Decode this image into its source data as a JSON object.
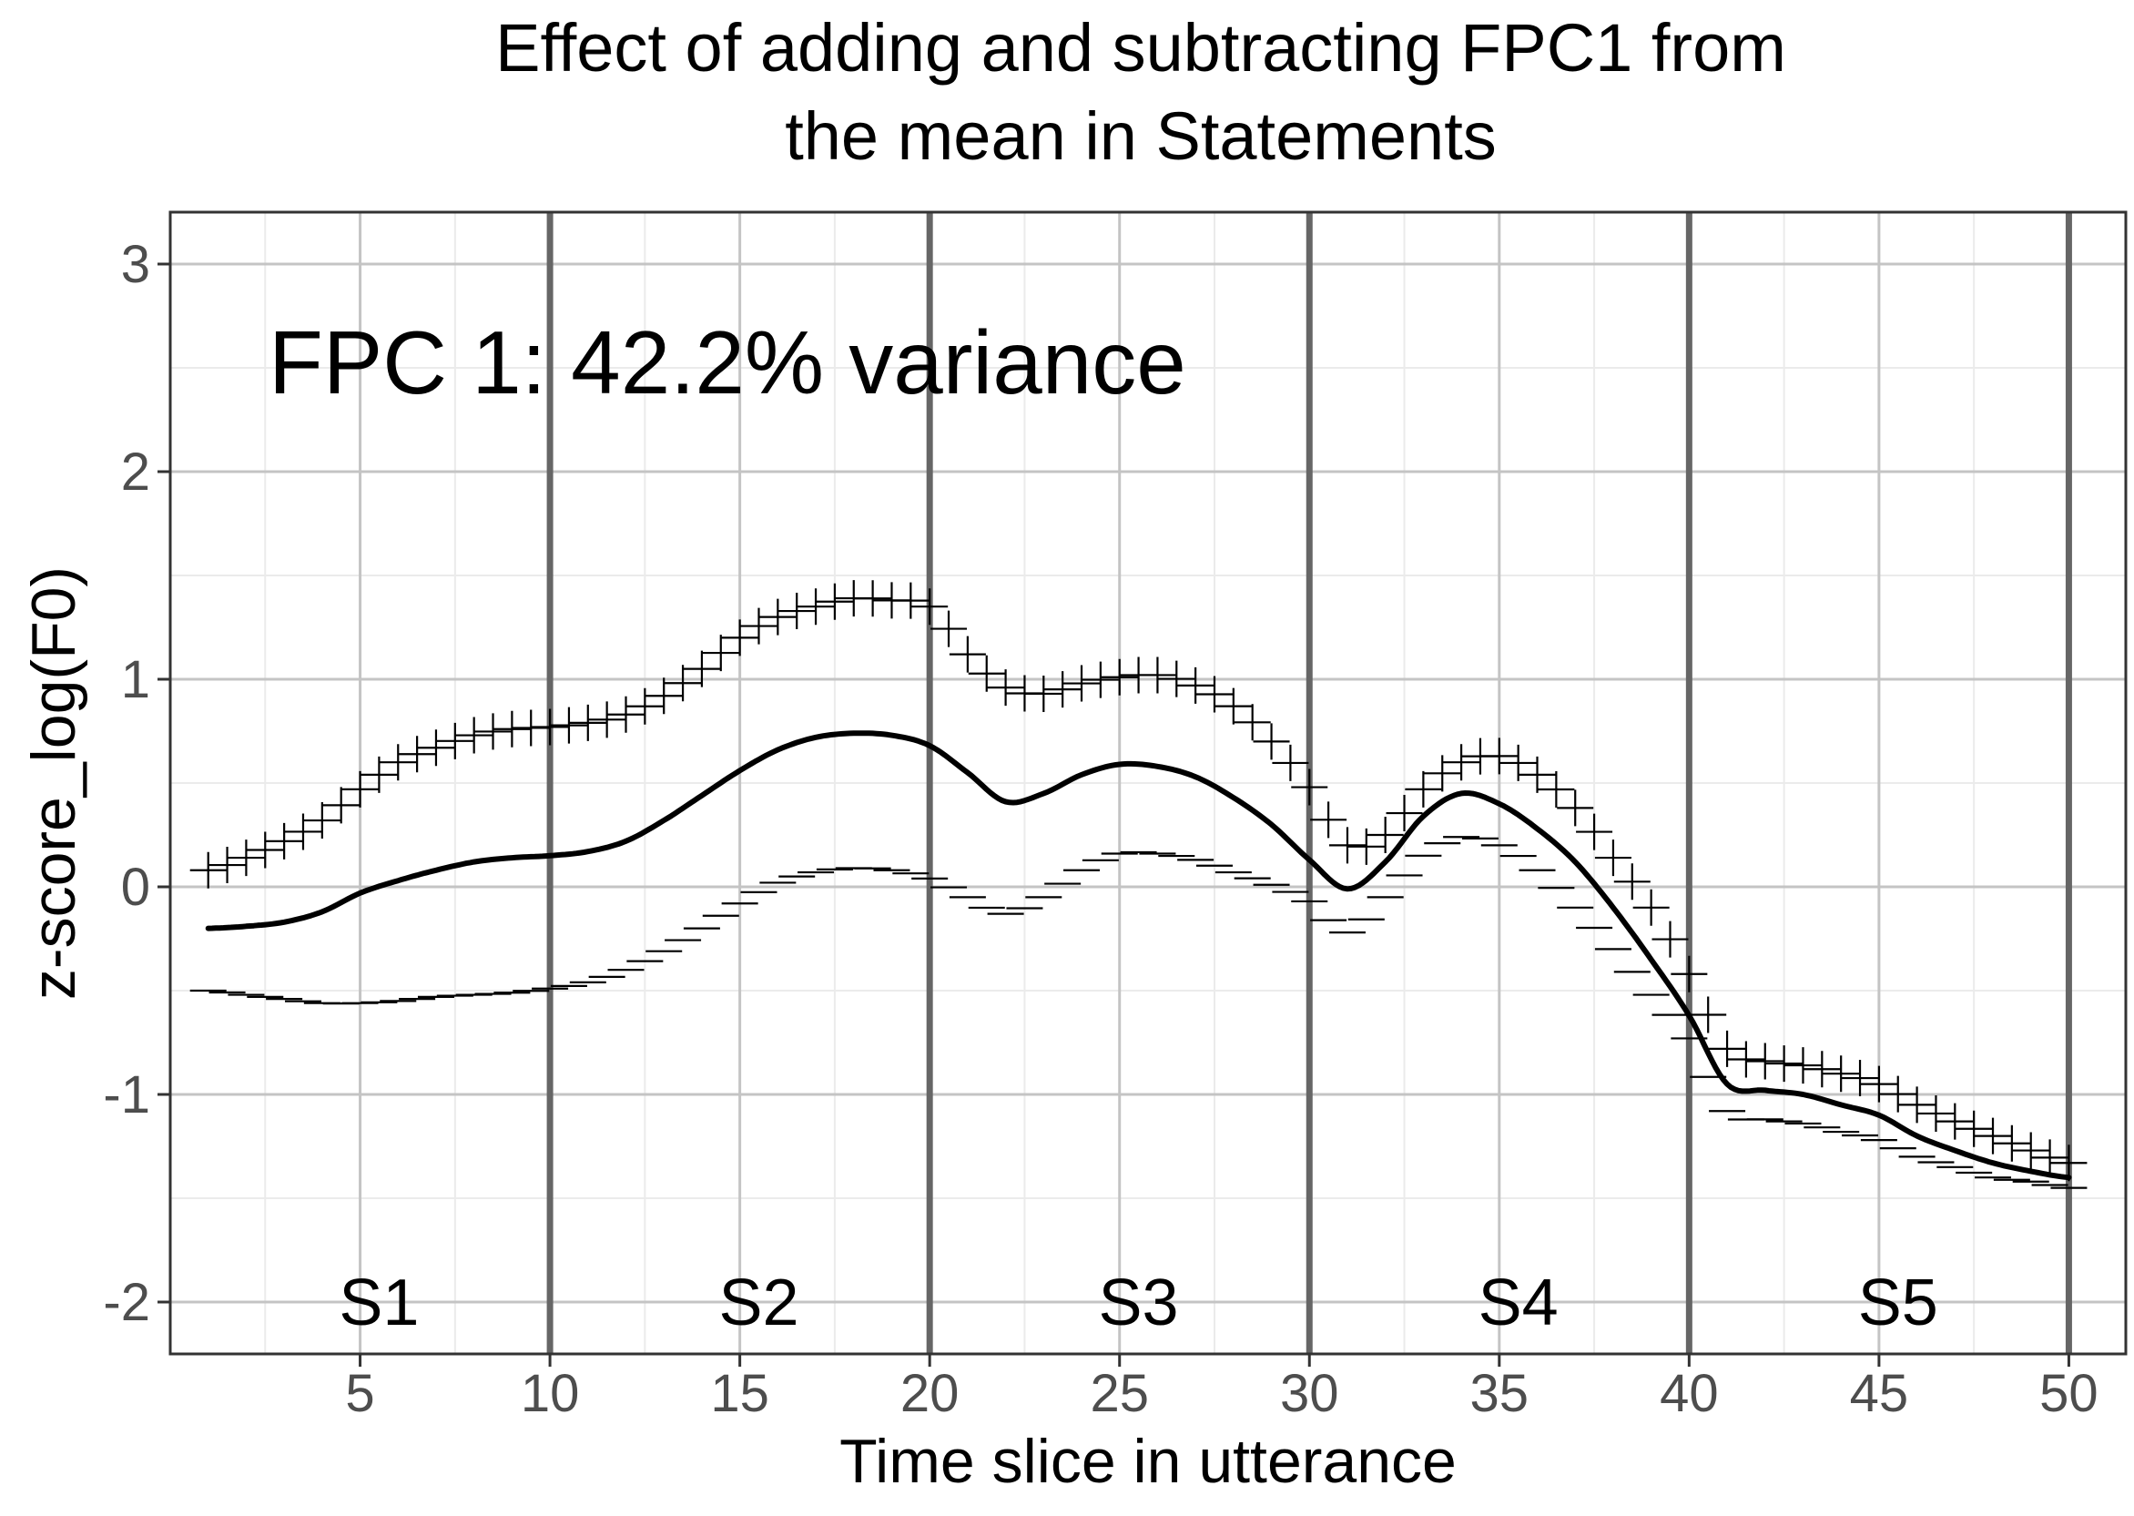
{
  "chart_data": {
    "type": "line",
    "title_lines": [
      "Effect of adding and subtracting FPC1 from",
      "the mean in Statements"
    ],
    "xlabel": "Time slice in utterance",
    "ylabel": "z-score_log(F0)",
    "annotation": "FPC 1: 42.2% variance",
    "xlim": [
      0,
      51.5
    ],
    "ylim": [
      -2.25,
      3.25
    ],
    "x_ticks": [
      5,
      10,
      15,
      20,
      25,
      30,
      35,
      40,
      45,
      50
    ],
    "y_ticks": [
      -2,
      -1,
      0,
      1,
      2,
      3
    ],
    "grid": true,
    "segment_boundaries": [
      10,
      20,
      30,
      40,
      50
    ],
    "segment_labels": [
      {
        "label": "S1",
        "x": 5.5,
        "y": -2.0
      },
      {
        "label": "S2",
        "x": 15.5,
        "y": -2.0
      },
      {
        "label": "S3",
        "x": 25.5,
        "y": -2.0
      },
      {
        "label": "S4",
        "x": 35.5,
        "y": -2.0
      },
      {
        "label": "S5",
        "x": 45.5,
        "y": -2.0
      }
    ],
    "x_knots": [
      1,
      2,
      3,
      4,
      5,
      6,
      7,
      8,
      9,
      10,
      11,
      12,
      13,
      14,
      15,
      16,
      17,
      18,
      19,
      20,
      21,
      22,
      23,
      24,
      25,
      26,
      27,
      28,
      29,
      30,
      31,
      32,
      33,
      34,
      35,
      36,
      37,
      38,
      39,
      40,
      41,
      42,
      43,
      44,
      45,
      46,
      47,
      48,
      49,
      50
    ],
    "series": [
      {
        "name": "mean",
        "style": "solid-line",
        "values": [
          -0.2,
          -0.19,
          -0.17,
          -0.12,
          -0.03,
          0.03,
          0.08,
          0.12,
          0.14,
          0.15,
          0.17,
          0.22,
          0.32,
          0.44,
          0.56,
          0.66,
          0.72,
          0.74,
          0.73,
          0.68,
          0.55,
          0.41,
          0.45,
          0.54,
          0.59,
          0.58,
          0.53,
          0.43,
          0.3,
          0.13,
          -0.01,
          0.12,
          0.34,
          0.45,
          0.4,
          0.28,
          0.12,
          -0.1,
          -0.35,
          -0.62,
          -0.95,
          -0.98,
          -1.0,
          -1.05,
          -1.1,
          -1.2,
          -1.27,
          -1.33,
          -1.37,
          -1.4
        ]
      },
      {
        "name": "mean + FPC1",
        "style": "plus-markers",
        "values": [
          0.08,
          0.14,
          0.22,
          0.32,
          0.47,
          0.6,
          0.67,
          0.73,
          0.76,
          0.77,
          0.79,
          0.83,
          0.92,
          1.05,
          1.2,
          1.3,
          1.35,
          1.39,
          1.38,
          1.35,
          1.12,
          0.96,
          0.93,
          0.98,
          1.01,
          1.02,
          0.97,
          0.87,
          0.7,
          0.48,
          0.2,
          0.25,
          0.47,
          0.6,
          0.63,
          0.54,
          0.38,
          0.14,
          -0.1,
          -0.42,
          -0.78,
          -0.84,
          -0.86,
          -0.9,
          -0.95,
          -1.05,
          -1.13,
          -1.2,
          -1.27,
          -1.33
        ]
      },
      {
        "name": "mean - FPC1",
        "style": "minus-markers",
        "values": [
          -0.5,
          -0.52,
          -0.54,
          -0.56,
          -0.56,
          -0.55,
          -0.53,
          -0.52,
          -0.51,
          -0.49,
          -0.46,
          -0.4,
          -0.31,
          -0.2,
          -0.08,
          0.02,
          0.07,
          0.09,
          0.08,
          0.04,
          -0.05,
          -0.13,
          -0.05,
          0.08,
          0.16,
          0.16,
          0.13,
          0.07,
          0.01,
          -0.07,
          -0.22,
          -0.05,
          0.15,
          0.24,
          0.2,
          0.08,
          -0.1,
          -0.3,
          -0.52,
          -0.73,
          -1.08,
          -1.12,
          -1.14,
          -1.18,
          -1.22,
          -1.3,
          -1.35,
          -1.4,
          -1.42,
          -1.45
        ]
      }
    ]
  }
}
